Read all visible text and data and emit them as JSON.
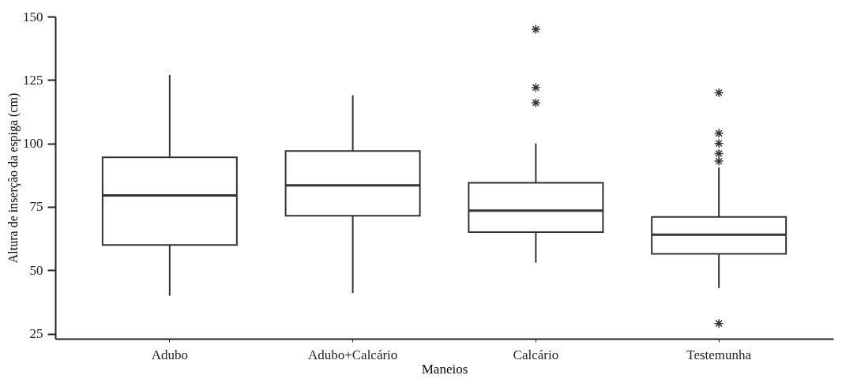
{
  "chart_data": {
    "type": "box",
    "xlabel": "Maneios",
    "ylabel": "Altura de inserção da espiga (cm)",
    "categories": [
      "Adubo",
      "Adubo+Calcário",
      "Calcário",
      "Testemunha"
    ],
    "boxes": [
      {
        "low": 40,
        "q1": 60,
        "median": 79.5,
        "q3": 94.5,
        "high": 127
      },
      {
        "low": 41,
        "q1": 71.5,
        "median": 83.5,
        "q3": 97,
        "high": 119
      },
      {
        "low": 53,
        "q1": 65,
        "median": 73.5,
        "q3": 84.5,
        "high": 100,
        "outliers": [
          145,
          122,
          116
        ]
      },
      {
        "low": 43,
        "q1": 56.5,
        "median": 64,
        "q3": 71,
        "high": 90.5,
        "outliers": [
          120,
          104,
          100,
          96,
          93,
          29
        ]
      }
    ],
    "color": "#333333",
    "marker": "star",
    "ylim": [
      23,
      150
    ],
    "yticks": [
      25,
      50,
      75,
      100,
      125,
      150
    ],
    "grid": false
  }
}
